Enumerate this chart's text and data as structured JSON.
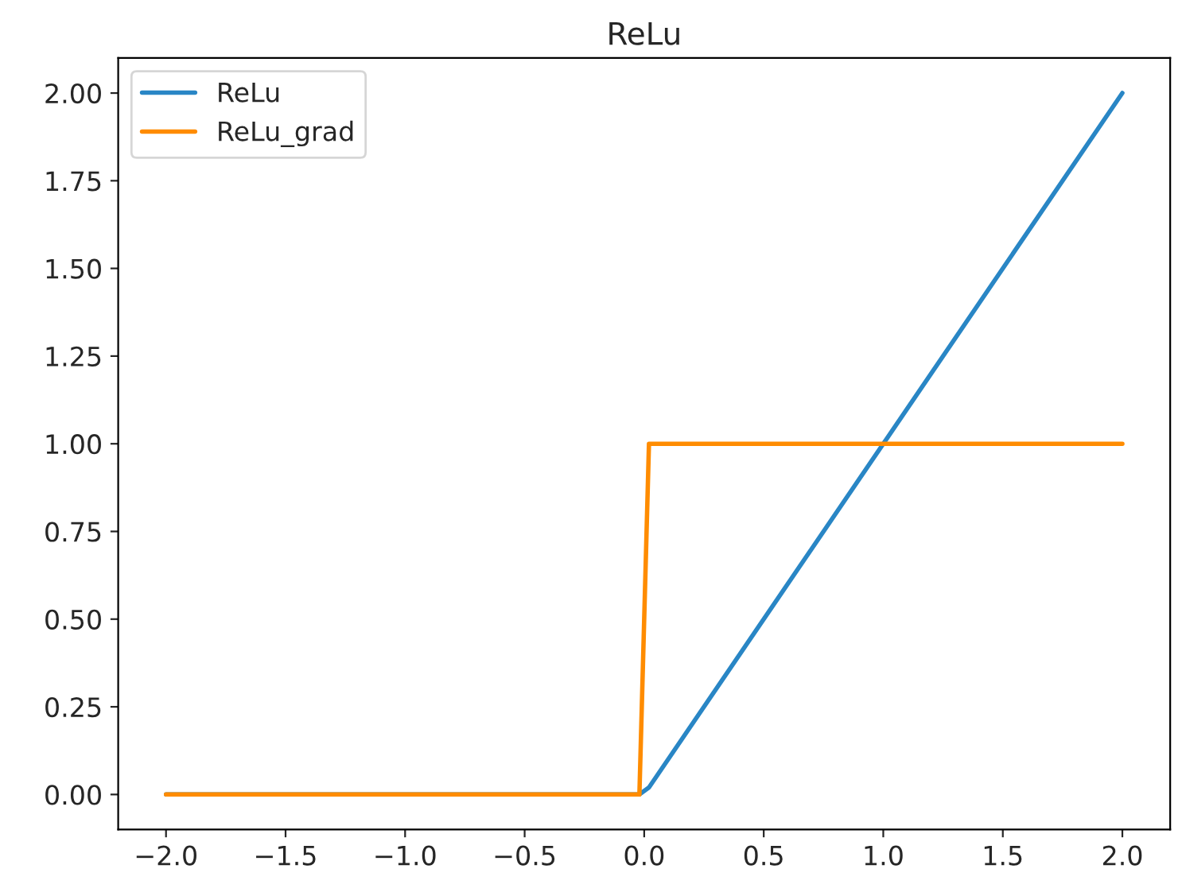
{
  "chart_data": {
    "type": "line",
    "title": "ReLu",
    "series": [
      {
        "name": "ReLu",
        "color": "#2986c5",
        "x": [
          -2.0,
          -0.02,
          0.02,
          2.0
        ],
        "values": [
          0.0,
          0.0,
          0.02,
          2.0
        ]
      },
      {
        "name": "ReLu_grad",
        "color": "#ff8c00",
        "x": [
          -2.0,
          -0.02,
          0.02,
          2.0
        ],
        "values": [
          0.0,
          0.0,
          1.0,
          1.0
        ]
      }
    ],
    "xlim": [
      -2.2,
      2.2
    ],
    "ylim": [
      -0.1,
      2.1
    ],
    "xticks": [
      {
        "value": -2.0,
        "label": "−2.0"
      },
      {
        "value": -1.5,
        "label": "−1.5"
      },
      {
        "value": -1.0,
        "label": "−1.0"
      },
      {
        "value": -0.5,
        "label": "−0.5"
      },
      {
        "value": 0.0,
        "label": "0.0"
      },
      {
        "value": 0.5,
        "label": "0.5"
      },
      {
        "value": 1.0,
        "label": "1.0"
      },
      {
        "value": 1.5,
        "label": "1.5"
      },
      {
        "value": 2.0,
        "label": "2.0"
      }
    ],
    "yticks": [
      {
        "value": 0.0,
        "label": "0.00"
      },
      {
        "value": 0.25,
        "label": "0.25"
      },
      {
        "value": 0.5,
        "label": "0.50"
      },
      {
        "value": 0.75,
        "label": "0.75"
      },
      {
        "value": 1.0,
        "label": "1.00"
      },
      {
        "value": 1.25,
        "label": "1.25"
      },
      {
        "value": 1.5,
        "label": "1.50"
      },
      {
        "value": 1.75,
        "label": "1.75"
      },
      {
        "value": 2.0,
        "label": "2.00"
      }
    ],
    "grid": false,
    "legend": "top left",
    "line_style": "solid",
    "marker": "none"
  }
}
